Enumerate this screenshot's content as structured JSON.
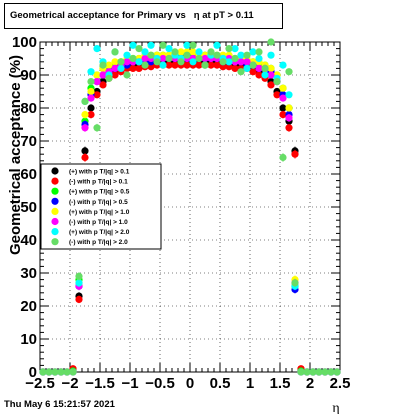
{
  "title": "Geometrical acceptance for Primary vs   η at pT > 0.11",
  "timestamp": "Thu May  6 15:21:57 2021",
  "chart_data": {
    "type": "scatter",
    "title": "Geometrical acceptance for Primary vs   η at pT > 0.11",
    "xlabel": "η",
    "ylabel": "Geometrical acceptance (%)",
    "xlim": [
      -2.5,
      2.5
    ],
    "ylim": [
      0,
      100
    ],
    "xticks": [
      -2.5,
      -2,
      -1.5,
      -1,
      -0.5,
      0,
      0.5,
      1,
      1.5,
      2,
      2.5
    ],
    "xtick_labels": [
      "−2.5",
      "−2",
      "−1.5",
      "−1",
      "−0.5",
      "0",
      "0.5",
      "1",
      "1.5",
      "2",
      "2.5"
    ],
    "yticks": [
      0,
      10,
      20,
      30,
      40,
      50,
      60,
      70,
      80,
      90,
      100
    ],
    "ytick_labels": [
      "0",
      "10",
      "20",
      "30",
      "40",
      "50",
      "60",
      "70",
      "80",
      "90",
      "100"
    ],
    "grid": true,
    "legend_position": "left-middle",
    "series": [
      {
        "name": "(+) with p T/|q| > 0.1",
        "color": "#000000",
        "x": [
          -2.45,
          -2.35,
          -2.25,
          -2.15,
          -2.05,
          -1.95,
          -1.85,
          -1.75,
          -1.65,
          -1.55,
          -1.45,
          -1.35,
          -1.25,
          -1.15,
          -1.05,
          -0.95,
          -0.85,
          -0.75,
          -0.65,
          -0.55,
          -0.45,
          -0.35,
          -0.25,
          -0.15,
          -0.05,
          0.05,
          0.15,
          0.25,
          0.35,
          0.45,
          0.55,
          0.65,
          0.75,
          0.85,
          0.95,
          1.05,
          1.15,
          1.25,
          1.35,
          1.45,
          1.55,
          1.65,
          1.75,
          1.85,
          1.95,
          2.05,
          2.15,
          2.25,
          2.35,
          2.45
        ],
        "y": [
          0,
          0,
          0,
          0,
          0,
          0.5,
          23,
          67,
          80,
          85,
          88,
          90,
          91,
          92,
          93,
          93,
          93,
          93.5,
          93.5,
          94,
          94,
          94,
          94,
          94,
          94,
          94,
          94,
          94,
          94,
          94,
          93.5,
          93.5,
          93,
          93,
          93,
          92,
          91,
          90,
          88,
          85,
          80,
          76,
          67,
          0.5,
          0,
          0,
          0,
          0,
          0,
          0
        ]
      },
      {
        "name": "(-) with p T/|q| > 0.1",
        "color": "#ff0000",
        "x": [
          -2.45,
          -2.35,
          -2.25,
          -2.15,
          -2.05,
          -1.95,
          -1.85,
          -1.75,
          -1.65,
          -1.55,
          -1.45,
          -1.35,
          -1.25,
          -1.15,
          -1.05,
          -0.95,
          -0.85,
          -0.75,
          -0.65,
          -0.55,
          -0.45,
          -0.35,
          -0.25,
          -0.15,
          -0.05,
          0.05,
          0.15,
          0.25,
          0.35,
          0.45,
          0.55,
          0.65,
          0.75,
          0.85,
          0.95,
          1.05,
          1.15,
          1.25,
          1.35,
          1.45,
          1.55,
          1.65,
          1.75,
          1.85,
          1.95,
          2.05,
          2.15,
          2.25,
          2.35,
          2.45
        ],
        "y": [
          0,
          0,
          0,
          0,
          0,
          1,
          22,
          65,
          78,
          84,
          87,
          89,
          90,
          91,
          92,
          92,
          92,
          92.5,
          92.5,
          93,
          93,
          93,
          93,
          93,
          93,
          93,
          93,
          93,
          93,
          93,
          92.5,
          92.5,
          92,
          92,
          92,
          91,
          90,
          89,
          87,
          84,
          78,
          74,
          66,
          1,
          0,
          0,
          0,
          0,
          0,
          0
        ]
      },
      {
        "name": "(+) with p T/|q| > 0.5",
        "color": "#00ff00",
        "x": [
          -2.45,
          -2.35,
          -2.25,
          -2.15,
          -2.05,
          -1.95,
          -1.85,
          -1.75,
          -1.65,
          -1.55,
          -1.45,
          -1.35,
          -1.25,
          -1.15,
          -1.05,
          -0.95,
          -0.85,
          -0.75,
          -0.65,
          -0.55,
          -0.45,
          -0.35,
          -0.25,
          -0.15,
          -0.05,
          0.05,
          0.15,
          0.25,
          0.35,
          0.45,
          0.55,
          0.65,
          0.75,
          0.85,
          0.95,
          1.05,
          1.15,
          1.25,
          1.35,
          1.45,
          1.55,
          1.65,
          1.75,
          1.85,
          1.95,
          2.05,
          2.15,
          2.25,
          2.35,
          2.45
        ],
        "y": [
          0,
          0,
          0,
          0,
          0,
          0.3,
          28,
          76,
          86,
          90,
          92,
          92,
          93,
          94,
          94,
          95,
          95,
          95,
          95,
          96,
          96,
          96,
          96,
          96,
          96,
          96,
          96,
          96,
          96,
          95,
          95,
          95,
          95,
          95,
          94,
          94,
          93,
          93,
          92,
          90,
          86,
          80,
          26,
          0.3,
          0,
          0,
          0,
          0,
          0,
          0
        ]
      },
      {
        "name": "(-) with p T/|q| > 0.5",
        "color": "#0000ff",
        "x": [
          -2.45,
          -2.35,
          -2.25,
          -2.15,
          -2.05,
          -1.95,
          -1.85,
          -1.75,
          -1.65,
          -1.55,
          -1.45,
          -1.35,
          -1.25,
          -1.15,
          -1.05,
          -0.95,
          -0.85,
          -0.75,
          -0.65,
          -0.55,
          -0.45,
          -0.35,
          -0.25,
          -0.15,
          -0.05,
          0.05,
          0.15,
          0.25,
          0.35,
          0.45,
          0.55,
          0.65,
          0.75,
          0.85,
          0.95,
          1.05,
          1.15,
          1.25,
          1.35,
          1.45,
          1.55,
          1.65,
          1.75,
          1.85,
          1.95,
          2.05,
          2.15,
          2.25,
          2.35,
          2.45
        ],
        "y": [
          0,
          0,
          0,
          0,
          0,
          0,
          26,
          75,
          84,
          88,
          90,
          91,
          92,
          93,
          93,
          94,
          94,
          94,
          94,
          95,
          95,
          95,
          95,
          95,
          95,
          95,
          95,
          95,
          95,
          95,
          94,
          94,
          94,
          94,
          93,
          93,
          92,
          92,
          91,
          88,
          84,
          78,
          25,
          0,
          0,
          0,
          0,
          0,
          0,
          0
        ]
      },
      {
        "name": "(+) with p T/|q| > 1.0",
        "color": "#ffff00",
        "x": [
          -2.45,
          -2.35,
          -2.25,
          -2.15,
          -2.05,
          -1.95,
          -1.85,
          -1.75,
          -1.65,
          -1.55,
          -1.45,
          -1.35,
          -1.25,
          -1.15,
          -1.05,
          -0.95,
          -0.85,
          -0.75,
          -0.65,
          -0.55,
          -0.45,
          -0.35,
          -0.25,
          -0.15,
          -0.05,
          0.05,
          0.15,
          0.25,
          0.35,
          0.45,
          0.55,
          0.65,
          0.75,
          0.85,
          0.95,
          1.05,
          1.15,
          1.25,
          1.35,
          1.45,
          1.55,
          1.65,
          1.75,
          1.85,
          1.95,
          2.05,
          2.15,
          2.25,
          2.35,
          2.45
        ],
        "y": [
          0,
          0,
          0,
          0,
          0,
          0,
          27,
          78,
          85,
          90,
          92,
          93,
          94,
          94,
          95,
          95,
          95,
          96,
          96,
          96,
          96,
          96,
          96,
          97,
          97,
          97,
          96,
          96,
          96,
          96,
          96,
          96,
          95,
          95,
          95,
          94,
          94,
          93,
          92,
          90,
          86,
          80,
          28,
          0,
          0,
          0,
          0,
          0,
          0,
          0
        ]
      },
      {
        "name": "(-) with p T/|q| > 1.0",
        "color": "#ff00ff",
        "x": [
          -2.45,
          -2.35,
          -2.25,
          -2.15,
          -2.05,
          -1.95,
          -1.85,
          -1.75,
          -1.65,
          -1.55,
          -1.45,
          -1.35,
          -1.25,
          -1.15,
          -1.05,
          -0.95,
          -0.85,
          -0.75,
          -0.65,
          -0.55,
          -0.45,
          -0.35,
          -0.25,
          -0.15,
          -0.05,
          0.05,
          0.15,
          0.25,
          0.35,
          0.45,
          0.55,
          0.65,
          0.75,
          0.85,
          0.95,
          1.05,
          1.15,
          1.25,
          1.35,
          1.45,
          1.55,
          1.65,
          1.75,
          1.85,
          1.95,
          2.05,
          2.15,
          2.25,
          2.35,
          2.45
        ],
        "y": [
          0,
          0,
          0,
          0,
          0,
          0,
          26,
          74,
          83,
          88,
          90,
          91,
          92,
          93,
          94,
          94,
          94,
          95,
          95,
          95,
          95,
          95,
          95,
          95,
          95,
          95,
          95,
          95,
          95,
          95,
          95,
          95,
          94,
          94,
          94,
          93,
          92,
          92,
          90,
          88,
          83,
          77,
          27,
          0,
          0,
          0,
          0,
          0,
          0,
          0
        ]
      },
      {
        "name": "(+) with p T/|q| > 2.0",
        "color": "#00ffff",
        "x": [
          -2.45,
          -2.35,
          -2.25,
          -2.15,
          -2.05,
          -1.95,
          -1.85,
          -1.75,
          -1.65,
          -1.55,
          -1.45,
          -1.35,
          -1.25,
          -1.15,
          -1.05,
          -0.95,
          -0.85,
          -0.75,
          -0.65,
          -0.55,
          -0.45,
          -0.35,
          -0.25,
          -0.15,
          -0.05,
          0.05,
          0.15,
          0.25,
          0.35,
          0.45,
          0.55,
          0.65,
          0.75,
          0.85,
          0.95,
          1.05,
          1.15,
          1.25,
          1.35,
          1.45,
          1.55,
          1.65,
          1.75,
          1.85,
          1.95,
          2.05,
          2.15,
          2.25,
          2.35,
          2.45
        ],
        "y": [
          0,
          0,
          0,
          0,
          0,
          0,
          27,
          82,
          91,
          98,
          94,
          90,
          97,
          92,
          96,
          99,
          94,
          97,
          99,
          95,
          93,
          98,
          96,
          95,
          99,
          94,
          97,
          93,
          96,
          99,
          95,
          94,
          98,
          96,
          92,
          97,
          95,
          90,
          96,
          89,
          93,
          84,
          26,
          0,
          0,
          0,
          0,
          0,
          0,
          0
        ]
      },
      {
        "name": "(-) with p T/|q| > 2.0",
        "color": "#66dd66",
        "x": [
          -2.45,
          -2.35,
          -2.25,
          -2.15,
          -2.05,
          -1.95,
          -1.85,
          -1.75,
          -1.65,
          -1.55,
          -1.45,
          -1.35,
          -1.25,
          -1.15,
          -1.05,
          -0.95,
          -0.85,
          -0.75,
          -0.65,
          -0.55,
          -0.45,
          -0.35,
          -0.25,
          -0.15,
          -0.05,
          0.05,
          0.15,
          0.25,
          0.35,
          0.45,
          0.55,
          0.65,
          0.75,
          0.85,
          0.95,
          1.05,
          1.15,
          1.25,
          1.35,
          1.45,
          1.55,
          1.65,
          1.75,
          1.85,
          1.95,
          2.05,
          2.15,
          2.25,
          2.35,
          2.45
        ],
        "y": [
          0,
          0,
          0,
          0,
          0,
          0,
          29,
          82,
          88,
          74,
          93,
          89,
          97,
          94,
          90,
          95,
          98,
          93,
          96,
          94,
          99,
          95,
          97,
          94,
          96,
          99,
          95,
          93,
          97,
          96,
          94,
          98,
          95,
          91,
          96,
          93,
          97,
          92,
          100,
          88,
          65,
          91,
          27,
          0,
          0,
          0,
          0,
          0,
          0,
          0
        ]
      }
    ]
  }
}
